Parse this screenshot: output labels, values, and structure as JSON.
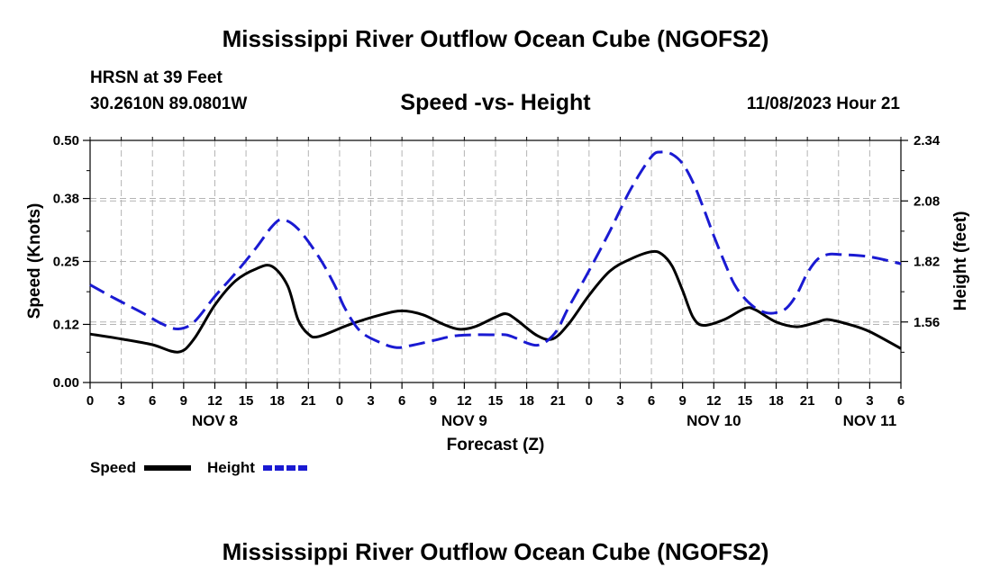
{
  "header": {
    "title": "Mississippi River Outflow Ocean Cube (NGOFS2)",
    "station": "HRSN at 39 Feet",
    "coordinates": "30.2610N  89.0801W",
    "subtitle": "Speed -vs- Height",
    "datetime": "11/08/2023 Hour 21"
  },
  "footer": {
    "title": "Mississippi River Outflow Ocean Cube (NGOFS2)"
  },
  "chart_data": {
    "type": "line",
    "title": "Speed -vs- Height",
    "xlabel": "Forecast (Z)",
    "ylabel": "Speed (Knots)",
    "y2label": "Height (feet)",
    "x_hours": [
      0,
      78
    ],
    "x_tick_labels": [
      "0",
      "3",
      "6",
      "9",
      "12",
      "15",
      "18",
      "21",
      "0",
      "3",
      "6",
      "9",
      "12",
      "15",
      "18",
      "21",
      "0",
      "3",
      "6",
      "9",
      "12",
      "15",
      "18",
      "21",
      "0",
      "3",
      "6"
    ],
    "day_labels": [
      {
        "label": "NOV 8",
        "hour": 12
      },
      {
        "label": "NOV 9",
        "hour": 36
      },
      {
        "label": "NOV 10",
        "hour": 60
      },
      {
        "label": "NOV 11",
        "hour": 75
      }
    ],
    "ylim": [
      0,
      0.5
    ],
    "y_ticks": [
      0.0,
      0.12,
      0.25,
      0.38,
      0.5
    ],
    "y_tick_labels": [
      "0.00",
      "0.12",
      "0.25",
      "0.38",
      "0.50"
    ],
    "y2lim": [
      1.3,
      2.34
    ],
    "y2_ticks": [
      1.56,
      1.82,
      2.08,
      2.34
    ],
    "y2_tick_labels": [
      "1.56",
      "1.82",
      "2.08",
      "2.34"
    ],
    "grid": true,
    "series": [
      {
        "name": "Speed",
        "color": "#000000",
        "axis": "left",
        "dash": false,
        "points": [
          [
            0,
            0.1
          ],
          [
            3,
            0.09
          ],
          [
            6,
            0.078
          ],
          [
            8.5,
            0.063
          ],
          [
            10,
            0.09
          ],
          [
            12,
            0.16
          ],
          [
            14,
            0.21
          ],
          [
            16,
            0.235
          ],
          [
            17.5,
            0.24
          ],
          [
            19,
            0.2
          ],
          [
            20,
            0.13
          ],
          [
            21,
            0.1
          ],
          [
            22,
            0.095
          ],
          [
            25,
            0.12
          ],
          [
            28,
            0.14
          ],
          [
            30,
            0.148
          ],
          [
            32,
            0.14
          ],
          [
            34,
            0.12
          ],
          [
            35.5,
            0.11
          ],
          [
            37,
            0.115
          ],
          [
            39,
            0.135
          ],
          [
            40,
            0.142
          ],
          [
            41,
            0.13
          ],
          [
            43,
            0.097
          ],
          [
            44.5,
            0.09
          ],
          [
            46,
            0.12
          ],
          [
            48,
            0.18
          ],
          [
            50,
            0.23
          ],
          [
            52,
            0.255
          ],
          [
            54,
            0.27
          ],
          [
            55,
            0.265
          ],
          [
            56,
            0.24
          ],
          [
            57,
            0.19
          ],
          [
            58,
            0.135
          ],
          [
            59,
            0.118
          ],
          [
            61,
            0.13
          ],
          [
            63,
            0.153
          ],
          [
            64,
            0.15
          ],
          [
            66,
            0.125
          ],
          [
            68,
            0.115
          ],
          [
            70,
            0.125
          ],
          [
            71,
            0.13
          ],
          [
            73,
            0.12
          ],
          [
            75,
            0.105
          ],
          [
            78,
            0.07
          ]
        ]
      },
      {
        "name": "Height",
        "color": "#1a1ad2",
        "axis": "right",
        "dash": true,
        "points": [
          [
            0,
            1.72
          ],
          [
            2,
            1.67
          ],
          [
            5,
            1.6
          ],
          [
            7,
            1.55
          ],
          [
            8.5,
            1.53
          ],
          [
            10,
            1.56
          ],
          [
            12,
            1.67
          ],
          [
            14,
            1.77
          ],
          [
            16,
            1.88
          ],
          [
            17.5,
            1.97
          ],
          [
            18.5,
            2.0
          ],
          [
            20,
            1.96
          ],
          [
            22,
            1.84
          ],
          [
            23.5,
            1.72
          ],
          [
            24.5,
            1.62
          ],
          [
            26,
            1.52
          ],
          [
            28,
            1.47
          ],
          [
            29.5,
            1.45
          ],
          [
            31,
            1.46
          ],
          [
            33,
            1.48
          ],
          [
            35,
            1.5
          ],
          [
            37,
            1.505
          ],
          [
            39,
            1.505
          ],
          [
            40,
            1.505
          ],
          [
            41,
            1.49
          ],
          [
            42,
            1.47
          ],
          [
            43,
            1.46
          ],
          [
            44,
            1.48
          ],
          [
            45,
            1.53
          ],
          [
            46,
            1.62
          ],
          [
            48,
            1.78
          ],
          [
            50,
            1.95
          ],
          [
            52,
            2.13
          ],
          [
            54,
            2.27
          ],
          [
            55,
            2.29
          ],
          [
            56,
            2.28
          ],
          [
            57,
            2.24
          ],
          [
            58,
            2.16
          ],
          [
            59,
            2.05
          ],
          [
            60,
            1.93
          ],
          [
            61,
            1.82
          ],
          [
            62,
            1.72
          ],
          [
            63,
            1.66
          ],
          [
            64,
            1.62
          ],
          [
            65,
            1.6
          ],
          [
            66,
            1.6
          ],
          [
            67,
            1.62
          ],
          [
            68,
            1.68
          ],
          [
            69,
            1.77
          ],
          [
            70,
            1.83
          ],
          [
            71,
            1.85
          ],
          [
            72,
            1.85
          ],
          [
            75,
            1.84
          ],
          [
            78,
            1.81
          ]
        ]
      }
    ],
    "legend": {
      "position": "bottom-left",
      "items": [
        {
          "label": "Speed",
          "color": "#000000",
          "dash": false
        },
        {
          "label": "Height",
          "color": "#1a1ad2",
          "dash": true
        }
      ]
    }
  }
}
